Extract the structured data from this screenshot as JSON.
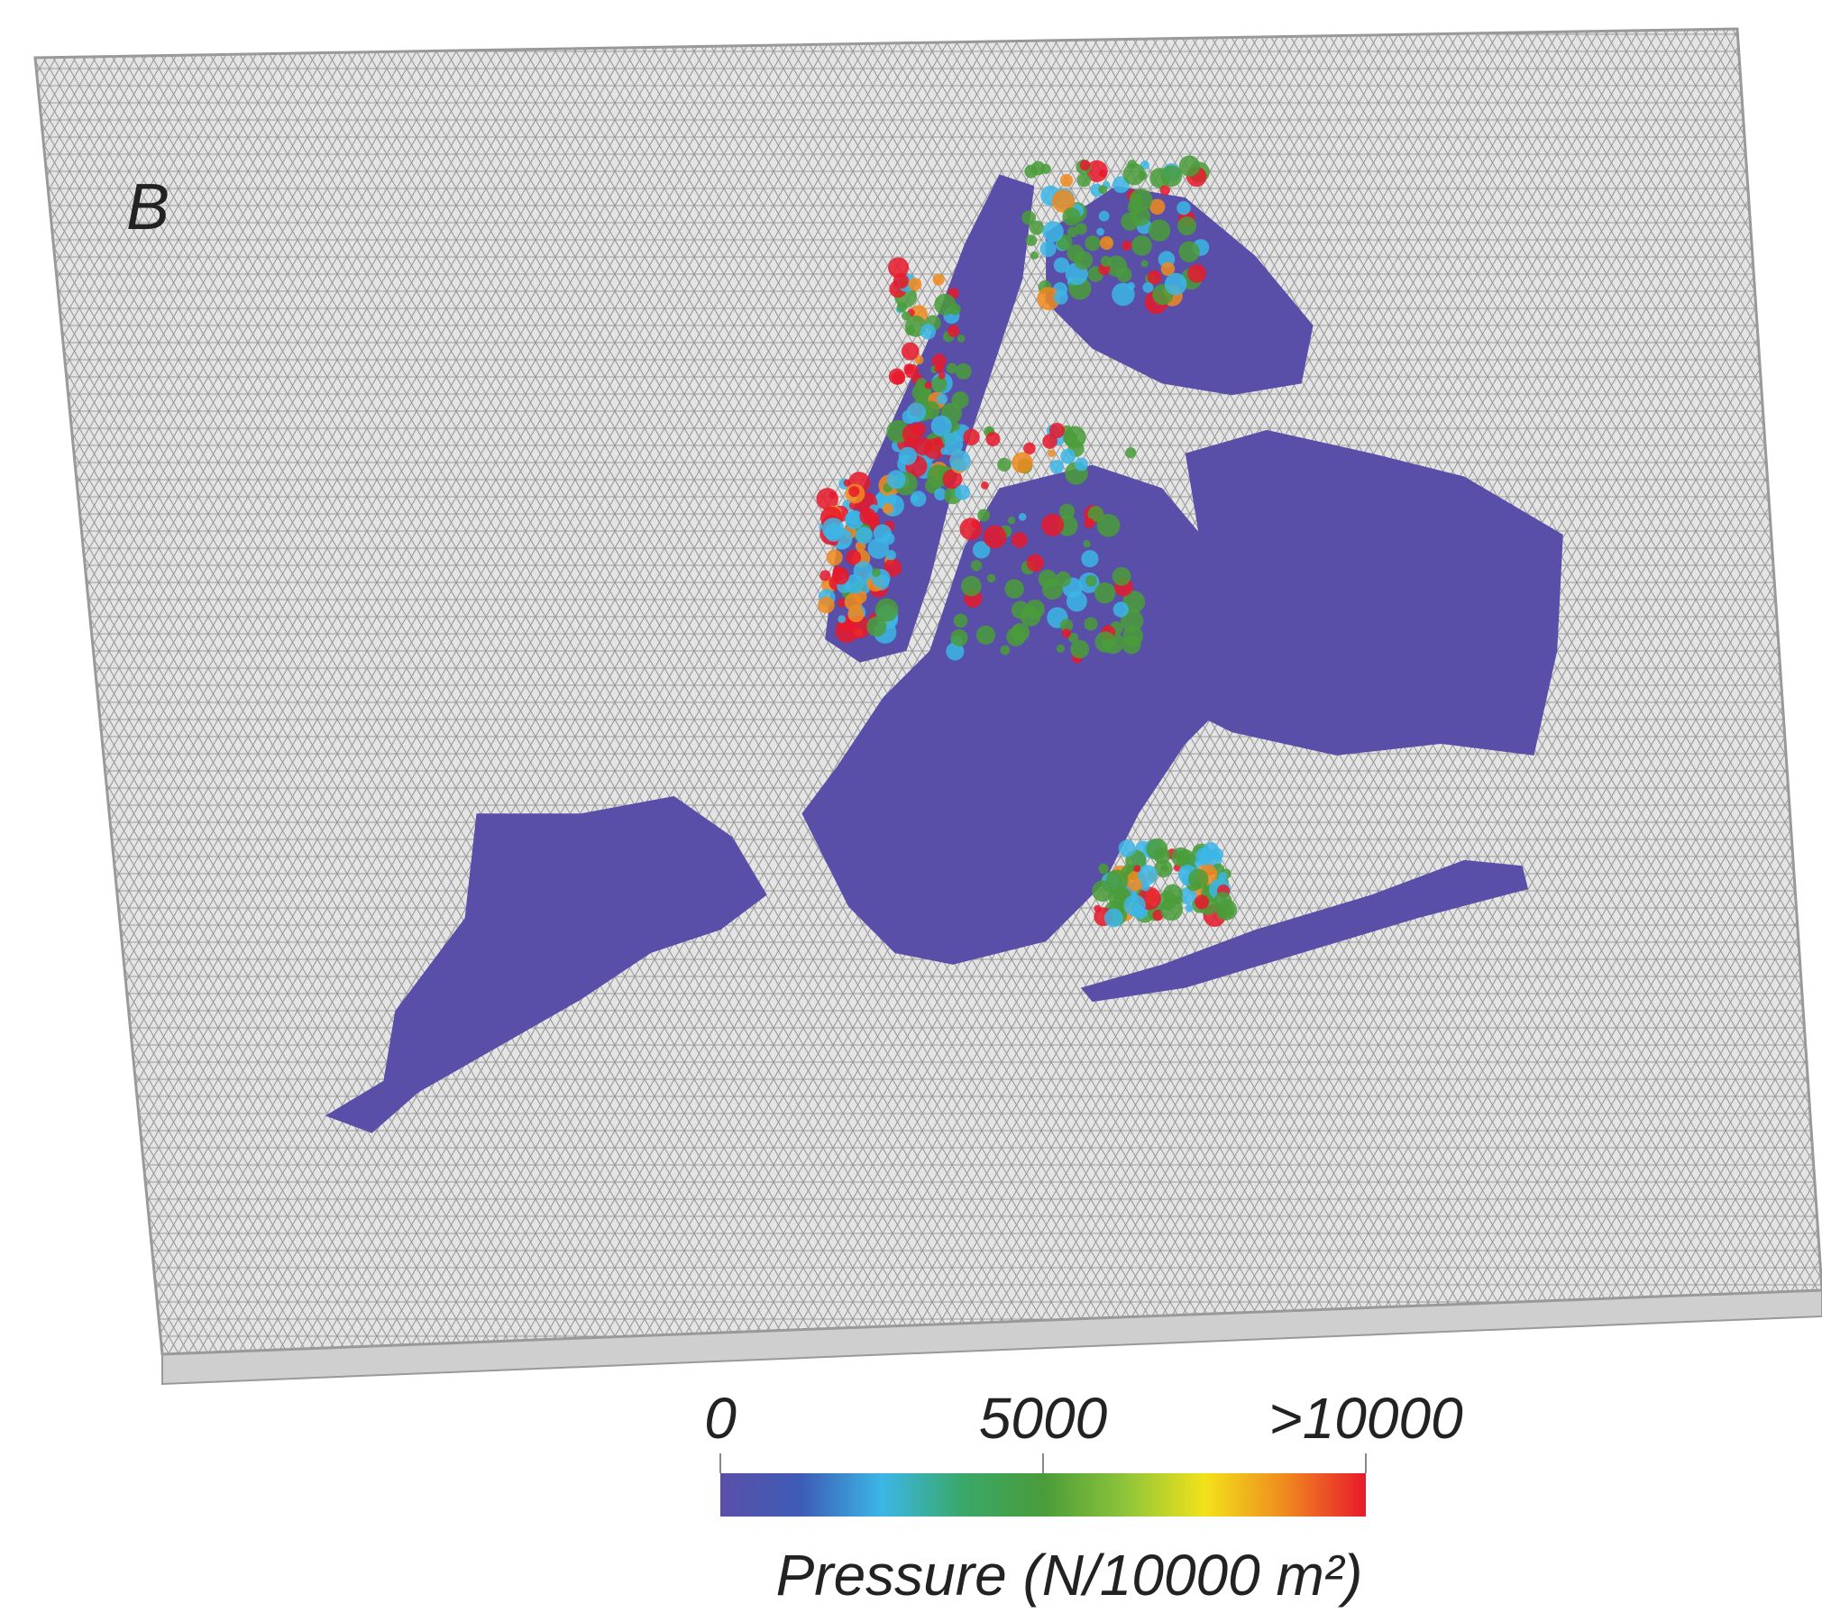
{
  "panel_label": "B",
  "colorbar": {
    "label": "Pressure (N/10000 m²)",
    "lim": [
      0,
      10000
    ],
    "ticks": [
      0,
      5000,
      {
        "value": 10000,
        "label": ">10000"
      }
    ],
    "colors": [
      "#5a4fa8",
      "#3d5cb6",
      "#3cb6e6",
      "#39a86a",
      "#4a9c3a",
      "#8cc43a",
      "#f2e21a",
      "#f08a1f",
      "#e8192b"
    ]
  }
}
